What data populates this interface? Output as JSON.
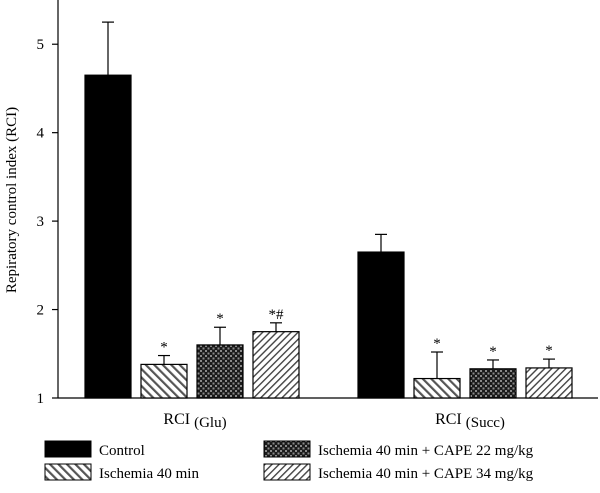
{
  "chart_data": {
    "type": "bar",
    "ylabel": "Repiratory control index (RCI)",
    "ylim": [
      1,
      5.5
    ],
    "yticks": [
      1,
      2,
      3,
      4,
      5
    ],
    "groups": [
      {
        "label": "RCI",
        "sub": "(Glu)"
      },
      {
        "label": "RCI",
        "sub": "(Succ)"
      }
    ],
    "series": [
      {
        "name": "Control",
        "pattern": "solid",
        "values": [
          4.65,
          2.65
        ],
        "errors": [
          0.6,
          0.2
        ],
        "marks": [
          "",
          ""
        ]
      },
      {
        "name": "Ischemia 40 min",
        "pattern": "hatch",
        "values": [
          1.38,
          1.22
        ],
        "errors": [
          0.1,
          0.3
        ],
        "marks": [
          "*",
          "*"
        ]
      },
      {
        "name": "Ischemia 40 min + CAPE 22 mg/kg",
        "pattern": "check",
        "values": [
          1.6,
          1.33
        ],
        "errors": [
          0.2,
          0.1
        ],
        "marks": [
          "*",
          "*"
        ]
      },
      {
        "name": "Ischemia 40 min + CAPE 34 mg/kg",
        "pattern": "hatch-light",
        "values": [
          1.75,
          1.34
        ],
        "errors": [
          0.1,
          0.1
        ],
        "marks": [
          "*#",
          "*"
        ]
      }
    ],
    "grid": false,
    "legend_position": "bottom"
  }
}
